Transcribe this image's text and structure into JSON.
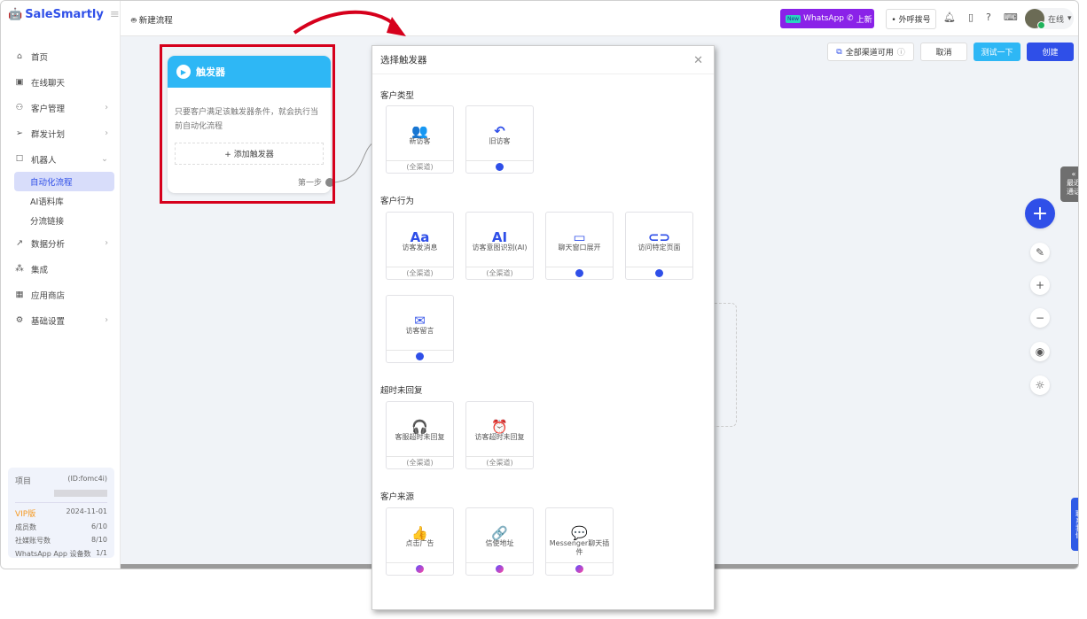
{
  "app": {
    "brand": "SaleSmartly"
  },
  "sidebar": {
    "items": [
      {
        "label": "首页",
        "icon": "home-icon"
      },
      {
        "label": "在线聊天",
        "icon": "chat-icon"
      },
      {
        "label": "客户管理",
        "icon": "users-icon"
      },
      {
        "label": "群发计划",
        "icon": "send-icon"
      },
      {
        "label": "机器人",
        "icon": "robot-icon"
      }
    ],
    "sub": [
      "自动化流程",
      "AI语料库",
      "分流链接"
    ],
    "items2": [
      {
        "label": "数据分析",
        "icon": "chart-icon"
      },
      {
        "label": "集成",
        "icon": "integration-icon"
      },
      {
        "label": "应用商店",
        "icon": "apps-icon"
      },
      {
        "label": "基础设置",
        "icon": "settings-icon"
      }
    ],
    "project": {
      "label": "项目",
      "id": "(ID:fomc4i)",
      "plan": "VIP版",
      "expiry": "2024-11-01",
      "rows": [
        {
          "k": "成员数",
          "v": "6/10"
        },
        {
          "k": "社媒账号数",
          "v": "8/10"
        },
        {
          "k": "WhatsApp App 设备数",
          "v": "1/1"
        }
      ]
    }
  },
  "header": {
    "breadcrumb": "新建流程",
    "wa_new": "New",
    "wa_text": "WhatsApp",
    "wa_suffix": "上新",
    "call": "• 外呼拨号",
    "status": "在线"
  },
  "toolbar": {
    "channels": "全部渠道可用",
    "cancel": "取消",
    "test": "测试一下",
    "create": "创建"
  },
  "node": {
    "title": "触发器",
    "desc": "只要客户满足该触发器条件，就会执行当前自动化流程",
    "add": "+ 添加触发器",
    "step": "第一步"
  },
  "modal": {
    "title": "选择触发器",
    "sections": [
      {
        "title": "客户类型",
        "cards": [
          {
            "icon": "👥",
            "label": "新访客",
            "foot": "(全渠道)"
          },
          {
            "icon": "↶",
            "label": "旧访客",
            "foot": ""
          }
        ]
      },
      {
        "title": "客户行为",
        "cards": [
          {
            "icon": "Aa",
            "label": "访客发消息",
            "foot": "(全渠道)"
          },
          {
            "icon": "AI",
            "label": "访客意图识别(AI)",
            "foot": "(全渠道)"
          },
          {
            "icon": "▭",
            "label": "聊天窗口展开",
            "foot": ""
          },
          {
            "icon": "⊂⊃",
            "label": "访问特定页面",
            "foot": ""
          },
          {
            "icon": "✉",
            "label": "访客留言",
            "foot": ""
          }
        ]
      },
      {
        "title": "超时未回复",
        "cards": [
          {
            "icon": "🎧",
            "label": "客服超时未回复",
            "foot": "(全渠道)"
          },
          {
            "icon": "⏰",
            "label": "访客超时未回复",
            "foot": "(全渠道)"
          }
        ]
      },
      {
        "title": "客户来源",
        "cards": [
          {
            "icon": "👍",
            "label": "点击广告",
            "foot": ""
          },
          {
            "icon": "🔗",
            "label": "信使地址",
            "foot": ""
          },
          {
            "icon": "💬",
            "label": "Messenger聊天插件",
            "foot": ""
          }
        ]
      }
    ]
  },
  "right": {
    "recent": "最近通话",
    "contact": "联系我们"
  },
  "colors": {
    "accent": "#2f4fe8",
    "trigger": "#2eb7f5",
    "highlight": "#d6001c"
  }
}
